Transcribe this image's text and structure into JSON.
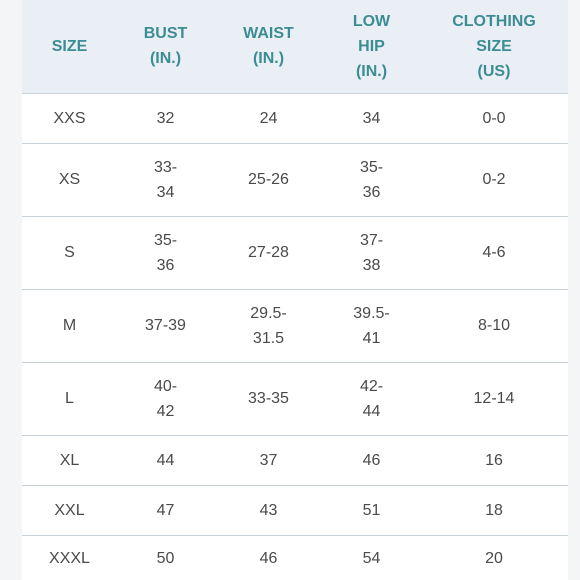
{
  "table": {
    "headers": [
      "SIZE",
      "BUST\n(IN.)",
      "WAIST\n(IN.)",
      "LOW\nHIP\n(IN.)",
      "CLOTHING\nSIZE\n(US)"
    ],
    "rows": [
      [
        "XXS",
        "32",
        "24",
        "34",
        "0-0"
      ],
      [
        "XS",
        "33-\n34",
        "25-26",
        "35-\n36",
        "0-2"
      ],
      [
        "S",
        "35-\n36",
        "27-28",
        "37-\n38",
        "4-6"
      ],
      [
        "M",
        "37-39",
        "29.5-\n31.5",
        "39.5-\n41",
        "8-10"
      ],
      [
        "L",
        "40-\n42",
        "33-35",
        "42-\n44",
        "12-14"
      ],
      [
        "XL",
        "44",
        "37",
        "46",
        "16"
      ],
      [
        "XXL",
        "47",
        "43",
        "51",
        "18"
      ],
      [
        "XXXL",
        "50",
        "46",
        "54",
        "20"
      ]
    ]
  },
  "colors": {
    "header_text": "#3c8d93",
    "header_background": "#e9eff5",
    "body_text": "#4a4a4a",
    "row_divider": "#c7d2d8",
    "page_background": "#f4f5f6"
  }
}
